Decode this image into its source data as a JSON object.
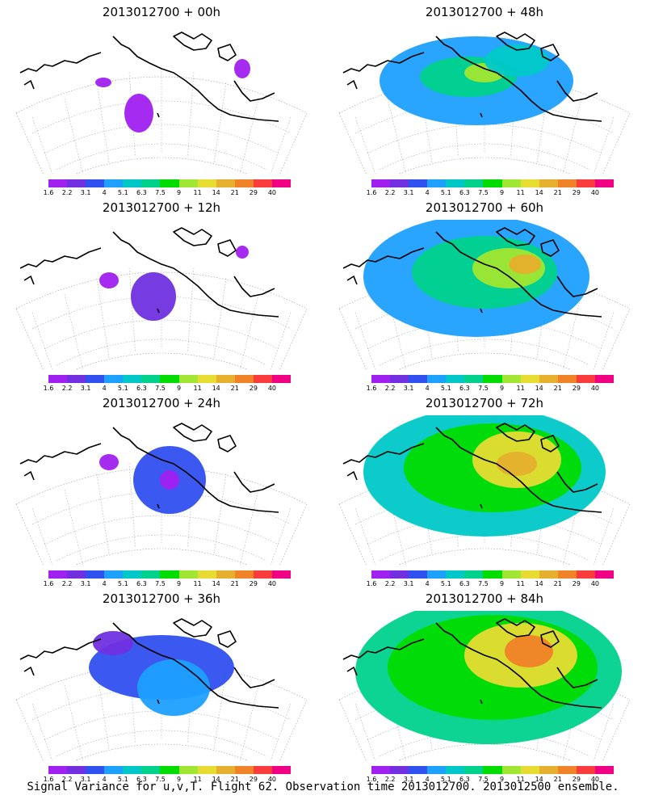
{
  "panels": [
    {
      "title": "2013012700 + 00h",
      "lead_hours": 0
    },
    {
      "title": "2013012700 + 48h",
      "lead_hours": 48
    },
    {
      "title": "2013012700 + 12h",
      "lead_hours": 12
    },
    {
      "title": "2013012700 + 60h",
      "lead_hours": 60
    },
    {
      "title": "2013012700 + 24h",
      "lead_hours": 24
    },
    {
      "title": "2013012700 + 72h",
      "lead_hours": 72
    },
    {
      "title": "2013012700 + 36h",
      "lead_hours": 36
    },
    {
      "title": "2013012700 + 84h",
      "lead_hours": 84
    }
  ],
  "colorbar": {
    "labels": [
      "1.6",
      "2.2",
      "3.1",
      "4",
      "5.1",
      "6.3",
      "7.5",
      "9",
      "11",
      "14",
      "21",
      "29",
      "40"
    ],
    "colors": [
      "#a020f0",
      "#7030e0",
      "#3050f0",
      "#1ea0ff",
      "#00c8c8",
      "#00d28c",
      "#00dc00",
      "#a0e632",
      "#e6dc32",
      "#e6af2d",
      "#f08228",
      "#fa3c3c",
      "#f00082"
    ]
  },
  "caption": "Signal Variance for u,v,T. Flight 62. Observation time 2013012700. 2013012500 ensemble."
}
